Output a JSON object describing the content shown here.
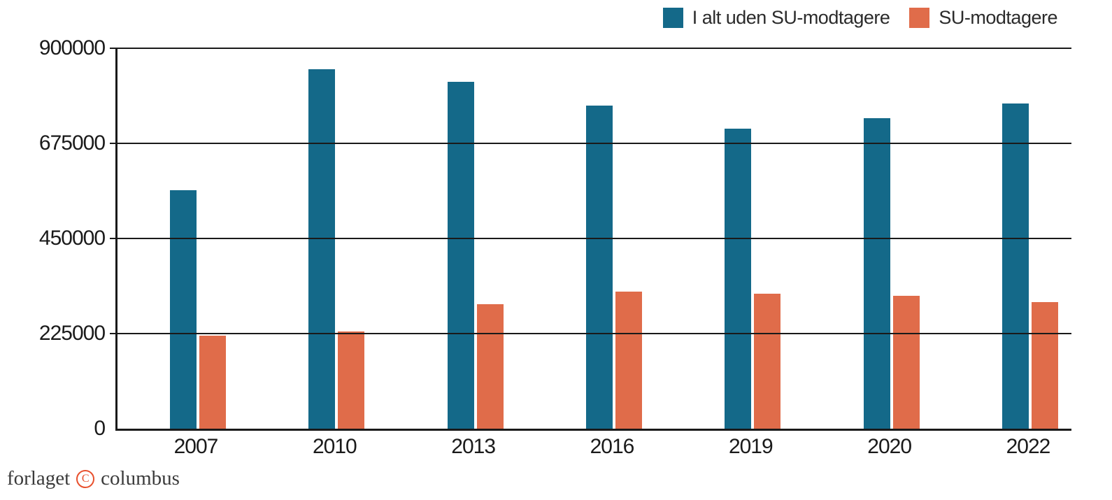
{
  "chart_data": {
    "type": "bar",
    "categories": [
      "2007",
      "2010",
      "2013",
      "2016",
      "2019",
      "2020",
      "2022"
    ],
    "series": [
      {
        "name": "I alt uden SU-modtagere",
        "color": "#146989",
        "values": [
          565000,
          850000,
          820000,
          765000,
          710000,
          735000,
          770000
        ]
      },
      {
        "name": "SU-modtagere",
        "color": "#e06c4a",
        "values": [
          220000,
          230000,
          295000,
          325000,
          320000,
          315000,
          300000
        ]
      }
    ],
    "title": "",
    "xlabel": "",
    "ylabel": "",
    "ylim": [
      0,
      900000
    ],
    "yticks": [
      0,
      225000,
      450000,
      675000,
      900000
    ],
    "grid": true,
    "legend_position": "top-right",
    "axis_color": "#1a1a1a",
    "grid_color": "#1a1a1a"
  },
  "footer": {
    "brand_left": "forlaget",
    "copyright_symbol": "C",
    "brand_right": "columbus"
  }
}
